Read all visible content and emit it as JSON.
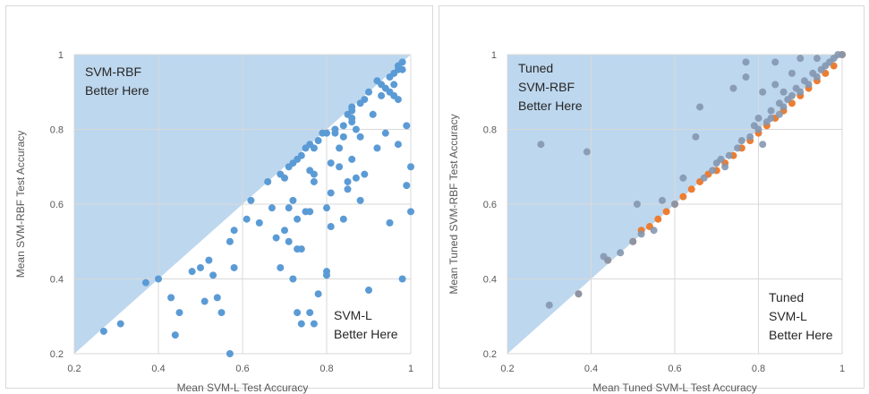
{
  "chart_data": [
    {
      "type": "scatter",
      "xlabel": "Mean SVM-L Test Accuracy",
      "ylabel": "Mean SVM-RBF Test Accuracy",
      "xlim": [
        0.2,
        1
      ],
      "ylim": [
        0.2,
        1
      ],
      "xticks": [
        "0.2",
        "0.4",
        "0.6",
        "0.8",
        "1"
      ],
      "yticks": [
        "0.2",
        "0.4",
        "0.6",
        "0.8",
        "1"
      ],
      "grid": true,
      "shaded_region": "above y = x",
      "annotations": [
        {
          "lines": [
            "SVM-RBF",
            "Better Here"
          ],
          "region": "top-left"
        },
        {
          "lines": [
            "SVM-L",
            "Better Here"
          ],
          "region": "bottom-right"
        }
      ],
      "series": [
        {
          "color": "#5b9bd5",
          "points": [
            [
              0.27,
              0.26
            ],
            [
              0.31,
              0.28
            ],
            [
              0.37,
              0.39
            ],
            [
              0.4,
              0.4
            ],
            [
              0.43,
              0.35
            ],
            [
              0.44,
              0.25
            ],
            [
              0.45,
              0.31
            ],
            [
              0.48,
              0.42
            ],
            [
              0.5,
              0.43
            ],
            [
              0.51,
              0.34
            ],
            [
              0.52,
              0.45
            ],
            [
              0.53,
              0.41
            ],
            [
              0.54,
              0.35
            ],
            [
              0.55,
              0.31
            ],
            [
              0.57,
              0.5
            ],
            [
              0.58,
              0.43
            ],
            [
              0.58,
              0.53
            ],
            [
              0.57,
              0.2
            ],
            [
              0.61,
              0.56
            ],
            [
              0.62,
              0.61
            ],
            [
              0.64,
              0.55
            ],
            [
              0.66,
              0.66
            ],
            [
              0.67,
              0.59
            ],
            [
              0.68,
              0.51
            ],
            [
              0.69,
              0.43
            ],
            [
              0.69,
              0.68
            ],
            [
              0.7,
              0.53
            ],
            [
              0.7,
              0.67
            ],
            [
              0.71,
              0.5
            ],
            [
              0.71,
              0.59
            ],
            [
              0.71,
              0.7
            ],
            [
              0.72,
              0.61
            ],
            [
              0.72,
              0.71
            ],
            [
              0.72,
              0.4
            ],
            [
              0.73,
              0.48
            ],
            [
              0.73,
              0.56
            ],
            [
              0.73,
              0.72
            ],
            [
              0.73,
              0.31
            ],
            [
              0.74,
              0.28
            ],
            [
              0.74,
              0.48
            ],
            [
              0.74,
              0.73
            ],
            [
              0.75,
              0.58
            ],
            [
              0.75,
              0.75
            ],
            [
              0.76,
              0.58
            ],
            [
              0.76,
              0.69
            ],
            [
              0.76,
              0.76
            ],
            [
              0.76,
              0.31
            ],
            [
              0.77,
              0.66
            ],
            [
              0.77,
              0.68
            ],
            [
              0.77,
              0.75
            ],
            [
              0.77,
              0.28
            ],
            [
              0.78,
              0.36
            ],
            [
              0.78,
              0.77
            ],
            [
              0.79,
              0.79
            ],
            [
              0.8,
              0.59
            ],
            [
              0.8,
              0.79
            ],
            [
              0.8,
              0.41
            ],
            [
              0.8,
              0.42
            ],
            [
              0.81,
              0.71
            ],
            [
              0.81,
              0.63
            ],
            [
              0.81,
              0.54
            ],
            [
              0.82,
              0.79
            ],
            [
              0.82,
              0.8
            ],
            [
              0.83,
              0.7
            ],
            [
              0.83,
              0.75
            ],
            [
              0.84,
              0.81
            ],
            [
              0.84,
              0.78
            ],
            [
              0.84,
              0.56
            ],
            [
              0.85,
              0.66
            ],
            [
              0.85,
              0.64
            ],
            [
              0.85,
              0.84
            ],
            [
              0.86,
              0.85
            ],
            [
              0.86,
              0.83
            ],
            [
              0.86,
              0.82
            ],
            [
              0.86,
              0.72
            ],
            [
              0.86,
              0.86
            ],
            [
              0.87,
              0.8
            ],
            [
              0.87,
              0.67
            ],
            [
              0.88,
              0.78
            ],
            [
              0.88,
              0.87
            ],
            [
              0.88,
              0.61
            ],
            [
              0.89,
              0.68
            ],
            [
              0.89,
              0.88
            ],
            [
              0.9,
              0.9
            ],
            [
              0.9,
              0.37
            ],
            [
              0.91,
              0.84
            ],
            [
              0.92,
              0.75
            ],
            [
              0.92,
              0.93
            ],
            [
              0.93,
              0.89
            ],
            [
              0.93,
              0.92
            ],
            [
              0.94,
              0.91
            ],
            [
              0.94,
              0.79
            ],
            [
              0.95,
              0.55
            ],
            [
              0.95,
              0.9
            ],
            [
              0.95,
              0.94
            ],
            [
              0.96,
              0.89
            ],
            [
              0.96,
              0.92
            ],
            [
              0.96,
              0.95
            ],
            [
              0.97,
              0.96
            ],
            [
              0.97,
              0.88
            ],
            [
              0.97,
              0.76
            ],
            [
              0.97,
              0.97
            ],
            [
              0.98,
              0.98
            ],
            [
              0.98,
              0.4
            ],
            [
              0.98,
              0.96
            ],
            [
              0.99,
              0.81
            ],
            [
              0.99,
              0.65
            ],
            [
              1.0,
              0.7
            ],
            [
              1.0,
              0.58
            ]
          ]
        }
      ]
    },
    {
      "type": "scatter",
      "xlabel": "Mean Tuned SVM-L Test Accuracy",
      "ylabel": "Mean Tuned SVM-RBF Test Accuracy",
      "xlim": [
        0.2,
        1
      ],
      "ylim": [
        0.2,
        1
      ],
      "xticks": [
        "0.2",
        "0.4",
        "0.6",
        "0.8",
        "1"
      ],
      "yticks": [
        "0.2",
        "0.4",
        "0.6",
        "0.8",
        "1"
      ],
      "grid": true,
      "shaded_region": "above y = x",
      "annotations": [
        {
          "lines": [
            "Tuned",
            "SVM-RBF",
            "Better Here"
          ],
          "region": "top-left"
        },
        {
          "lines": [
            "Tuned",
            "SVM-L",
            "Better Here"
          ],
          "region": "bottom-right"
        }
      ],
      "series": [
        {
          "color": "#ed7d31",
          "points": [
            [
              0.37,
              0.36
            ],
            [
              0.44,
              0.45
            ],
            [
              0.5,
              0.5
            ],
            [
              0.52,
              0.53
            ],
            [
              0.54,
              0.54
            ],
            [
              0.56,
              0.56
            ],
            [
              0.58,
              0.58
            ],
            [
              0.6,
              0.6
            ],
            [
              0.62,
              0.62
            ],
            [
              0.64,
              0.64
            ],
            [
              0.66,
              0.66
            ],
            [
              0.68,
              0.68
            ],
            [
              0.7,
              0.69
            ],
            [
              0.72,
              0.71
            ],
            [
              0.74,
              0.73
            ],
            [
              0.76,
              0.75
            ],
            [
              0.78,
              0.77
            ],
            [
              0.8,
              0.79
            ],
            [
              0.82,
              0.81
            ],
            [
              0.84,
              0.83
            ],
            [
              0.86,
              0.85
            ],
            [
              0.88,
              0.87
            ],
            [
              0.9,
              0.89
            ],
            [
              0.92,
              0.91
            ],
            [
              0.94,
              0.93
            ],
            [
              0.96,
              0.95
            ],
            [
              0.98,
              0.97
            ],
            [
              1.0,
              1.0
            ]
          ]
        },
        {
          "color": "#8497b0",
          "points": [
            [
              0.28,
              0.76
            ],
            [
              0.3,
              0.33
            ],
            [
              0.37,
              0.36
            ],
            [
              0.39,
              0.74
            ],
            [
              0.43,
              0.46
            ],
            [
              0.44,
              0.45
            ],
            [
              0.47,
              0.47
            ],
            [
              0.5,
              0.5
            ],
            [
              0.51,
              0.6
            ],
            [
              0.52,
              0.52
            ],
            [
              0.55,
              0.53
            ],
            [
              0.57,
              0.61
            ],
            [
              0.6,
              0.6
            ],
            [
              0.62,
              0.67
            ],
            [
              0.65,
              0.78
            ],
            [
              0.66,
              0.86
            ],
            [
              0.67,
              0.67
            ],
            [
              0.69,
              0.69
            ],
            [
              0.7,
              0.71
            ],
            [
              0.71,
              0.72
            ],
            [
              0.72,
              0.7
            ],
            [
              0.73,
              0.73
            ],
            [
              0.74,
              0.91
            ],
            [
              0.75,
              0.75
            ],
            [
              0.76,
              0.77
            ],
            [
              0.77,
              0.98
            ],
            [
              0.77,
              0.94
            ],
            [
              0.78,
              0.78
            ],
            [
              0.79,
              0.81
            ],
            [
              0.8,
              0.8
            ],
            [
              0.8,
              0.83
            ],
            [
              0.81,
              0.9
            ],
            [
              0.81,
              0.76
            ],
            [
              0.82,
              0.82
            ],
            [
              0.83,
              0.83
            ],
            [
              0.83,
              0.85
            ],
            [
              0.84,
              0.98
            ],
            [
              0.84,
              0.92
            ],
            [
              0.85,
              0.84
            ],
            [
              0.85,
              0.87
            ],
            [
              0.86,
              0.86
            ],
            [
              0.86,
              0.9
            ],
            [
              0.87,
              0.88
            ],
            [
              0.88,
              0.89
            ],
            [
              0.88,
              0.95
            ],
            [
              0.89,
              0.91
            ],
            [
              0.9,
              0.9
            ],
            [
              0.9,
              0.99
            ],
            [
              0.91,
              0.93
            ],
            [
              0.92,
              0.92
            ],
            [
              0.93,
              0.95
            ],
            [
              0.94,
              0.94
            ],
            [
              0.94,
              0.99
            ],
            [
              0.95,
              0.96
            ],
            [
              0.96,
              0.97
            ],
            [
              0.97,
              0.98
            ],
            [
              0.98,
              0.99
            ],
            [
              0.99,
              1.0
            ],
            [
              1.0,
              1.0
            ]
          ]
        }
      ]
    }
  ]
}
